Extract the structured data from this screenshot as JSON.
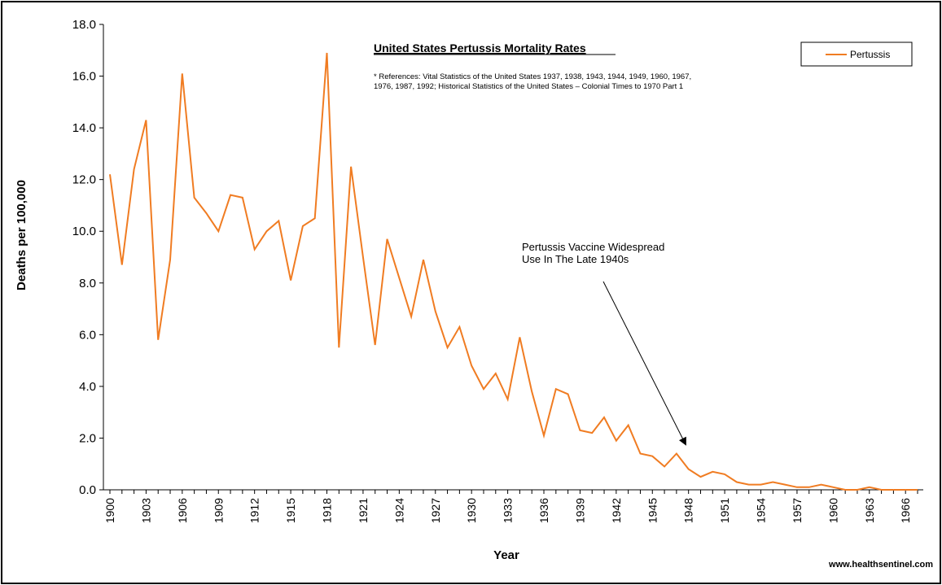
{
  "chart_data": {
    "type": "line",
    "title": "United States Pertussis Mortality Rates",
    "references": [
      "* References: Vital Statistics of the United States 1937, 1938, 1943, 1944, 1949, 1960, 1967,",
      "1976, 1987, 1992; Historical Statistics of the United States – Colonial Times to 1970 Part 1"
    ],
    "xlabel": "Year",
    "ylabel": "Deaths per 100,000",
    "ylim": [
      0,
      18
    ],
    "yticks": [
      "0.0",
      "2.0",
      "4.0",
      "6.0",
      "8.0",
      "10.0",
      "12.0",
      "14.0",
      "16.0",
      "18.0"
    ],
    "xtick_labels": [
      "1900",
      "1903",
      "1906",
      "1909",
      "1912",
      "1915",
      "1918",
      "1921",
      "1924",
      "1927",
      "1930",
      "1933",
      "1936",
      "1939",
      "1942",
      "1945",
      "1948",
      "1951",
      "1954",
      "1957",
      "1960",
      "1963",
      "1966"
    ],
    "x": [
      1900,
      1901,
      1902,
      1903,
      1904,
      1905,
      1906,
      1907,
      1908,
      1909,
      1910,
      1911,
      1912,
      1913,
      1914,
      1915,
      1916,
      1917,
      1918,
      1919,
      1920,
      1921,
      1922,
      1923,
      1924,
      1925,
      1926,
      1927,
      1928,
      1929,
      1930,
      1931,
      1932,
      1933,
      1934,
      1935,
      1936,
      1937,
      1938,
      1939,
      1940,
      1941,
      1942,
      1943,
      1944,
      1945,
      1946,
      1947,
      1948,
      1949,
      1950,
      1951,
      1952,
      1953,
      1954,
      1955,
      1956,
      1957,
      1958,
      1959,
      1960,
      1961,
      1962,
      1963,
      1964,
      1965,
      1966,
      1967
    ],
    "series": [
      {
        "name": "Pertussis",
        "color": "#f07c22",
        "values": [
          12.2,
          8.7,
          12.4,
          14.3,
          5.8,
          8.9,
          16.1,
          11.3,
          10.7,
          10.0,
          11.4,
          11.3,
          9.3,
          10.0,
          10.4,
          8.1,
          10.2,
          10.5,
          16.9,
          5.5,
          12.5,
          9.0,
          5.6,
          9.7,
          8.2,
          6.7,
          8.9,
          6.9,
          5.5,
          6.3,
          4.8,
          3.9,
          4.5,
          3.5,
          5.9,
          3.8,
          2.1,
          3.9,
          3.7,
          2.3,
          2.2,
          2.8,
          1.9,
          2.5,
          1.4,
          1.3,
          0.9,
          1.4,
          0.8,
          0.5,
          0.7,
          0.6,
          0.3,
          0.2,
          0.2,
          0.3,
          0.2,
          0.1,
          0.1,
          0.2,
          0.1,
          0.0,
          0.0,
          0.1,
          0.0,
          0.0,
          0.0,
          0.0
        ]
      }
    ],
    "annotation": {
      "lines": [
        "Pertussis  Vaccine Widespread",
        "Use In The  Late 1940s"
      ],
      "points_to_year": 1948
    },
    "legend_position": "top-right",
    "grid": false
  },
  "footer": {
    "site": "www.healthsentinel.com"
  }
}
